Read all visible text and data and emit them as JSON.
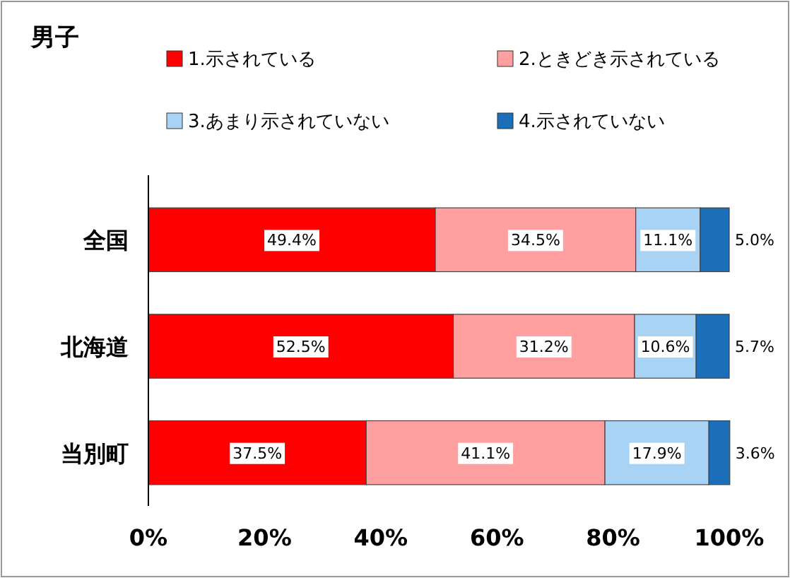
{
  "chart_data": {
    "type": "bar",
    "orientation": "horizontal",
    "stacked": true,
    "title": "男子",
    "categories": [
      "全国",
      "北海道",
      "当別町"
    ],
    "series": [
      {
        "name": "1.示されている",
        "color": "#ff0000",
        "values": [
          49.4,
          52.5,
          37.5
        ],
        "value_labels": [
          "49.4%",
          "52.5%",
          "37.5%"
        ]
      },
      {
        "name": "2.ときどき示されている",
        "color": "#ff9f9f",
        "values": [
          34.5,
          31.2,
          41.1
        ],
        "value_labels": [
          "34.5%",
          "31.2%",
          "41.1%"
        ]
      },
      {
        "name": "3.あまり示されていない",
        "color": "#a9d3f5",
        "values": [
          11.1,
          10.6,
          17.9
        ],
        "value_labels": [
          "11.1%",
          "10.6%",
          "17.9%"
        ]
      },
      {
        "name": "4.示されていない",
        "color": "#1a6fb8",
        "values": [
          5.0,
          5.7,
          3.6
        ],
        "value_labels": [
          "5.0%",
          "5.7%",
          "3.6%"
        ]
      }
    ],
    "xlim": [
      0,
      100
    ],
    "xticks": [
      {
        "value": 0,
        "label": "0%"
      },
      {
        "value": 20,
        "label": "20%"
      },
      {
        "value": 40,
        "label": "40%"
      },
      {
        "value": 60,
        "label": "60%"
      },
      {
        "value": 80,
        "label": "80%"
      },
      {
        "value": 100,
        "label": "100%"
      }
    ],
    "legend": "top",
    "grid": false
  }
}
